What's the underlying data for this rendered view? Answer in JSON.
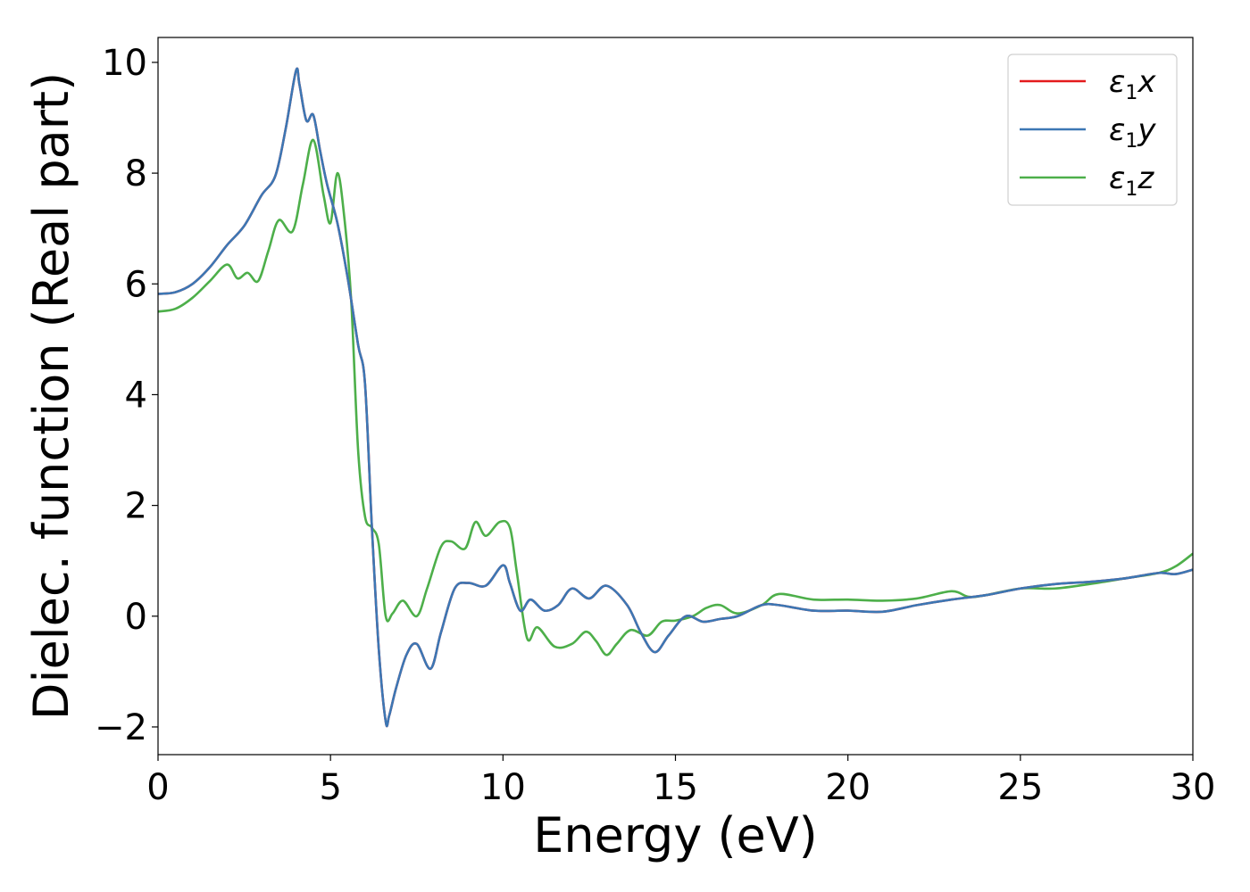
{
  "chart_data": {
    "type": "line",
    "xlabel": "Energy (eV)",
    "ylabel": "Dielec. function (Real part)",
    "xlim": [
      0,
      30
    ],
    "ylim": [
      -2.5,
      10.45
    ],
    "xticks": [
      0,
      5,
      10,
      15,
      20,
      25,
      30
    ],
    "yticks": [
      -2,
      0,
      2,
      4,
      6,
      8,
      10
    ],
    "ytick_labels": [
      "−2",
      "0",
      "2",
      "4",
      "6",
      "8",
      "10"
    ],
    "grid": false,
    "legend_position": "top-right",
    "series": [
      {
        "name": "ε1x",
        "legend": {
          "base": "ε",
          "sub": "1",
          "tail": "x"
        },
        "color": "#e41a1c",
        "x": [
          0,
          0.5,
          1,
          1.5,
          2,
          2.5,
          3,
          3.4,
          3.7,
          4.0,
          4.1,
          4.3,
          4.5,
          4.7,
          4.9,
          5.2,
          5.5,
          5.8,
          6.0,
          6.2,
          6.4,
          6.6,
          6.7,
          6.9,
          7.2,
          7.5,
          7.9,
          8.2,
          8.6,
          9.0,
          9.5,
          10.0,
          10.2,
          10.5,
          10.8,
          11.2,
          11.6,
          12.0,
          12.5,
          13.0,
          13.6,
          14.0,
          14.4,
          14.8,
          15.3,
          15.8,
          16.3,
          16.8,
          17.5,
          18.0,
          19.0,
          20.0,
          21.0,
          22.0,
          23.0,
          24.0,
          25.0,
          26.0,
          27.0,
          28.0,
          29.0,
          29.5,
          30.0
        ],
        "values": [
          5.82,
          5.85,
          6.0,
          6.3,
          6.7,
          7.05,
          7.6,
          7.95,
          8.8,
          9.85,
          9.6,
          8.95,
          9.05,
          8.4,
          7.8,
          7.1,
          6.1,
          4.9,
          4.2,
          1.6,
          -0.6,
          -1.9,
          -1.8,
          -1.3,
          -0.7,
          -0.5,
          -0.95,
          -0.3,
          0.5,
          0.6,
          0.55,
          0.92,
          0.6,
          0.1,
          0.3,
          0.1,
          0.2,
          0.5,
          0.32,
          0.55,
          0.2,
          -0.3,
          -0.65,
          -0.35,
          0.0,
          -0.1,
          -0.05,
          0.0,
          0.2,
          0.2,
          0.1,
          0.1,
          0.08,
          0.2,
          0.3,
          0.38,
          0.5,
          0.58,
          0.62,
          0.68,
          0.78,
          0.76,
          0.84
        ]
      },
      {
        "name": "ε1y",
        "legend": {
          "base": "ε",
          "sub": "1",
          "tail": "y"
        },
        "color": "#3c77b4",
        "x": [
          0,
          0.5,
          1,
          1.5,
          2,
          2.5,
          3,
          3.4,
          3.7,
          4.0,
          4.1,
          4.3,
          4.5,
          4.7,
          4.9,
          5.2,
          5.5,
          5.8,
          6.0,
          6.2,
          6.4,
          6.6,
          6.7,
          6.9,
          7.2,
          7.5,
          7.9,
          8.2,
          8.6,
          9.0,
          9.5,
          10.0,
          10.2,
          10.5,
          10.8,
          11.2,
          11.6,
          12.0,
          12.5,
          13.0,
          13.6,
          14.0,
          14.4,
          14.8,
          15.3,
          15.8,
          16.3,
          16.8,
          17.5,
          18.0,
          19.0,
          20.0,
          21.0,
          22.0,
          23.0,
          24.0,
          25.0,
          26.0,
          27.0,
          28.0,
          29.0,
          29.5,
          30.0
        ],
        "values": [
          5.82,
          5.85,
          6.0,
          6.3,
          6.7,
          7.05,
          7.6,
          7.95,
          8.8,
          9.85,
          9.6,
          8.95,
          9.05,
          8.4,
          7.8,
          7.1,
          6.1,
          4.9,
          4.2,
          1.6,
          -0.6,
          -1.9,
          -1.8,
          -1.3,
          -0.7,
          -0.5,
          -0.95,
          -0.3,
          0.5,
          0.6,
          0.55,
          0.92,
          0.6,
          0.1,
          0.3,
          0.1,
          0.2,
          0.5,
          0.32,
          0.55,
          0.2,
          -0.3,
          -0.65,
          -0.35,
          0.0,
          -0.1,
          -0.05,
          0.0,
          0.2,
          0.2,
          0.1,
          0.1,
          0.08,
          0.2,
          0.3,
          0.38,
          0.5,
          0.58,
          0.62,
          0.68,
          0.78,
          0.76,
          0.84
        ]
      },
      {
        "name": "ε1z",
        "legend": {
          "base": "ε",
          "sub": "1",
          "tail": "z"
        },
        "color": "#4daf4a",
        "x": [
          0,
          0.5,
          1,
          1.5,
          2,
          2.3,
          2.6,
          2.9,
          3.2,
          3.5,
          3.9,
          4.2,
          4.5,
          4.8,
          5.0,
          5.2,
          5.4,
          5.6,
          5.8,
          6.0,
          6.2,
          6.4,
          6.6,
          6.8,
          7.1,
          7.5,
          7.8,
          8.2,
          8.5,
          8.9,
          9.2,
          9.5,
          9.9,
          10.2,
          10.4,
          10.7,
          11.0,
          11.5,
          12.0,
          12.4,
          12.7,
          13.0,
          13.3,
          13.7,
          14.2,
          14.6,
          15.0,
          15.5,
          15.9,
          16.3,
          16.8,
          17.5,
          18.0,
          19.0,
          20.0,
          21.0,
          22.0,
          23.0,
          23.5,
          24.0,
          25.0,
          26.0,
          27.0,
          28.0,
          29.0,
          29.5,
          30.0
        ],
        "values": [
          5.5,
          5.55,
          5.75,
          6.05,
          6.35,
          6.1,
          6.2,
          6.05,
          6.6,
          7.15,
          6.95,
          7.8,
          8.6,
          7.6,
          7.1,
          8.0,
          7.2,
          5.7,
          3.0,
          1.8,
          1.6,
          1.3,
          0.0,
          0.05,
          0.28,
          0.0,
          0.5,
          1.25,
          1.35,
          1.22,
          1.7,
          1.45,
          1.7,
          1.6,
          0.8,
          -0.4,
          -0.2,
          -0.55,
          -0.5,
          -0.28,
          -0.45,
          -0.7,
          -0.5,
          -0.25,
          -0.35,
          -0.1,
          -0.08,
          0.0,
          0.15,
          0.2,
          0.05,
          0.2,
          0.4,
          0.3,
          0.3,
          0.28,
          0.32,
          0.45,
          0.35,
          0.38,
          0.5,
          0.5,
          0.58,
          0.68,
          0.78,
          0.9,
          1.13
        ]
      }
    ]
  }
}
